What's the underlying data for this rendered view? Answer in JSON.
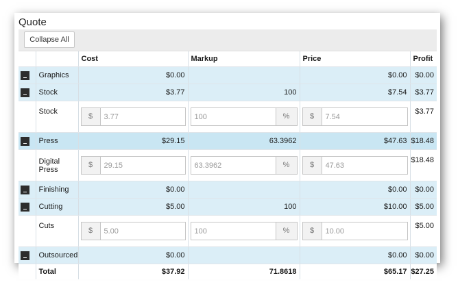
{
  "title": "Quote",
  "toolbar": {
    "collapse_label": "Collapse All"
  },
  "headers": {
    "cost": "Cost",
    "markup": "Markup",
    "price": "Price",
    "profit": "Profit"
  },
  "rows": [
    {
      "label": "Graphics",
      "cost": "$0.00",
      "markup": "",
      "price": "$0.00",
      "profit": "$0.00"
    },
    {
      "label": "Stock",
      "cost": "$3.77",
      "markup": "100",
      "price": "$7.54",
      "profit": "$3.77"
    },
    {
      "label": "Stock",
      "cost_prefix": "$",
      "cost_value": "3.77",
      "markup_value": "100",
      "markup_suffix": "%",
      "price_prefix": "$",
      "price_value": "7.54",
      "profit": "$3.77"
    },
    {
      "label": "Press",
      "cost": "$29.15",
      "markup": "63.3962",
      "price": "$47.63",
      "profit": "$18.48"
    },
    {
      "label": "Digital Press",
      "cost_prefix": "$",
      "cost_value": "29.15",
      "markup_value": "63.3962",
      "markup_suffix": "%",
      "price_prefix": "$",
      "price_value": "47.63",
      "profit": "$18.48"
    },
    {
      "label": "Finishing",
      "cost": "$0.00",
      "markup": "",
      "price": "$0.00",
      "profit": "$0.00"
    },
    {
      "label": "Cutting",
      "cost": "$5.00",
      "markup": "100",
      "price": "$10.00",
      "profit": "$5.00"
    },
    {
      "label": "Cuts",
      "cost_prefix": "$",
      "cost_value": "5.00",
      "markup_value": "100",
      "markup_suffix": "%",
      "price_prefix": "$",
      "price_value": "10.00",
      "profit": "$5.00"
    },
    {
      "label": "Outsourced",
      "cost": "$0.00",
      "markup": "",
      "price": "$0.00",
      "profit": "$0.00"
    }
  ],
  "total": {
    "label": "Total",
    "cost": "$37.92",
    "markup": "71.8618",
    "price": "$65.17",
    "profit": "$27.25"
  }
}
